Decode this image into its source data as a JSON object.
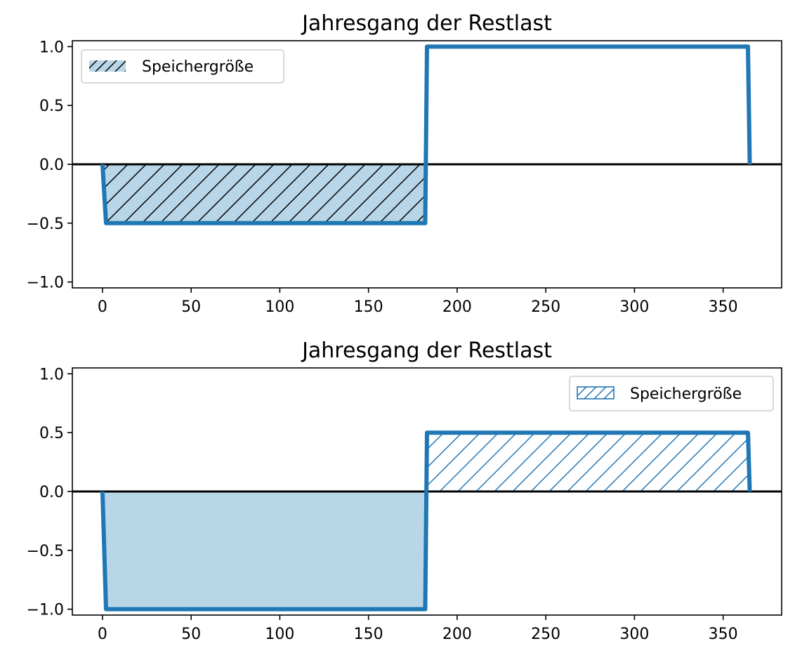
{
  "colors": {
    "series": "#1f77b4",
    "fill": "#b9d5e8",
    "zero_line": "#000000",
    "hatch_top": "#000000",
    "hatch_bottom": "#1f77b4"
  },
  "chart_data": [
    {
      "type": "line",
      "title": "Jahresgang der Restlast",
      "xlabel": "",
      "ylabel": "",
      "xlim": [
        -17,
        383
      ],
      "ylim": [
        -1.05,
        1.05
      ],
      "xticks": [
        0,
        50,
        100,
        150,
        200,
        250,
        300,
        350
      ],
      "xtick_labels": [
        "0",
        "50",
        "100",
        "150",
        "200",
        "250",
        "300",
        "350"
      ],
      "yticks": [
        1.0,
        0.5,
        0.0,
        -0.5,
        -1.0
      ],
      "ytick_labels": [
        "1.0",
        "0.5",
        "0.0",
        "−0.5",
        "−1.0"
      ],
      "grid": false,
      "series": [
        {
          "x": [
            0,
            2,
            182,
            183,
            364,
            365
          ],
          "y": [
            0,
            -0.5,
            -0.5,
            1.0,
            1.0,
            0
          ]
        }
      ],
      "fill_region": {
        "x_from": 0,
        "x_to": 182,
        "style": "solid fill with black hatching"
      },
      "legend": {
        "label": "Speichergröße",
        "placement": "upper left",
        "swatch": "filled-hatched"
      }
    },
    {
      "type": "line",
      "title": "Jahresgang der Restlast",
      "xlabel": "",
      "ylabel": "",
      "xlim": [
        -17,
        383
      ],
      "ylim": [
        -1.05,
        1.05
      ],
      "xticks": [
        0,
        50,
        100,
        150,
        200,
        250,
        300,
        350
      ],
      "xtick_labels": [
        "0",
        "50",
        "100",
        "150",
        "200",
        "250",
        "300",
        "350"
      ],
      "yticks": [
        1.0,
        0.5,
        0.0,
        -0.5,
        -1.0
      ],
      "ytick_labels": [
        "1.0",
        "0.5",
        "0.0",
        "−0.5",
        "−1.0"
      ],
      "grid": false,
      "series": [
        {
          "x": [
            0,
            2,
            182,
            183,
            364,
            365
          ],
          "y": [
            0,
            -1.0,
            -1.0,
            0.5,
            0.5,
            0
          ]
        }
      ],
      "fill_region": {
        "x_from": 0,
        "x_to": 182,
        "style": "solid fill"
      },
      "hatch_region": {
        "x_from": 182,
        "x_to": 365,
        "style": "blue hatching, no fill"
      },
      "legend": {
        "label": "Speichergröße",
        "placement": "upper right",
        "swatch": "outlined-hatched"
      }
    }
  ]
}
